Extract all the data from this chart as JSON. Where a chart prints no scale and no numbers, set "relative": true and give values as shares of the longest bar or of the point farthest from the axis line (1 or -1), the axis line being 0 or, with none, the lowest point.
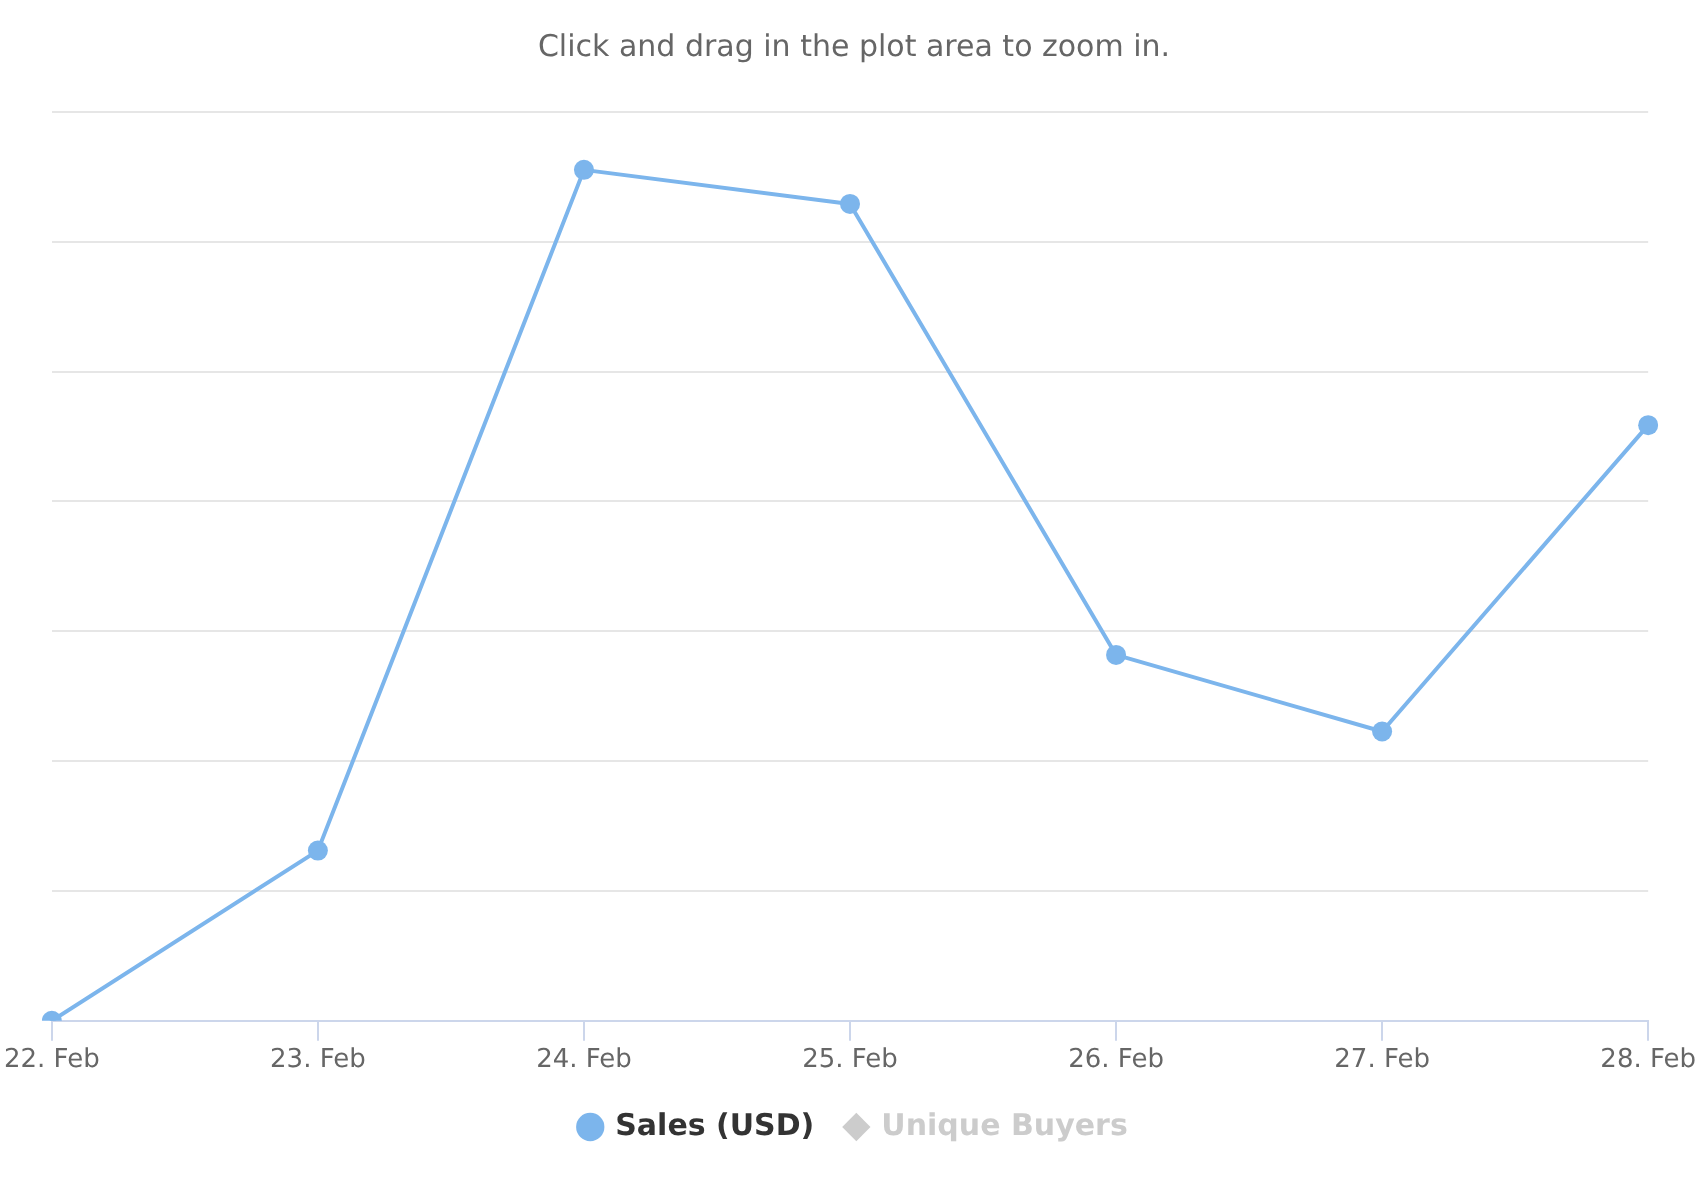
{
  "chart_data": {
    "type": "line",
    "title": "Click and drag in the plot area to zoom in.",
    "categories": [
      "22. Feb",
      "23. Feb",
      "24. Feb",
      "25. Feb",
      "26. Feb",
      "27. Feb",
      "28. Feb"
    ],
    "relative": true,
    "series": [
      {
        "name": "Sales (USD)",
        "color": "#7cb5ec",
        "values": [
          0,
          0.2,
          1,
          0.96,
          0.43,
          0.34,
          0.7
        ]
      },
      {
        "name": "Unique Buyers",
        "color": "#cccccc",
        "marker": "diamond",
        "values": [
          null,
          null,
          null,
          null,
          null,
          null,
          null
        ]
      }
    ],
    "grid": "y",
    "legend": "bottom",
    "marker": "circle",
    "line_style": "solid"
  }
}
